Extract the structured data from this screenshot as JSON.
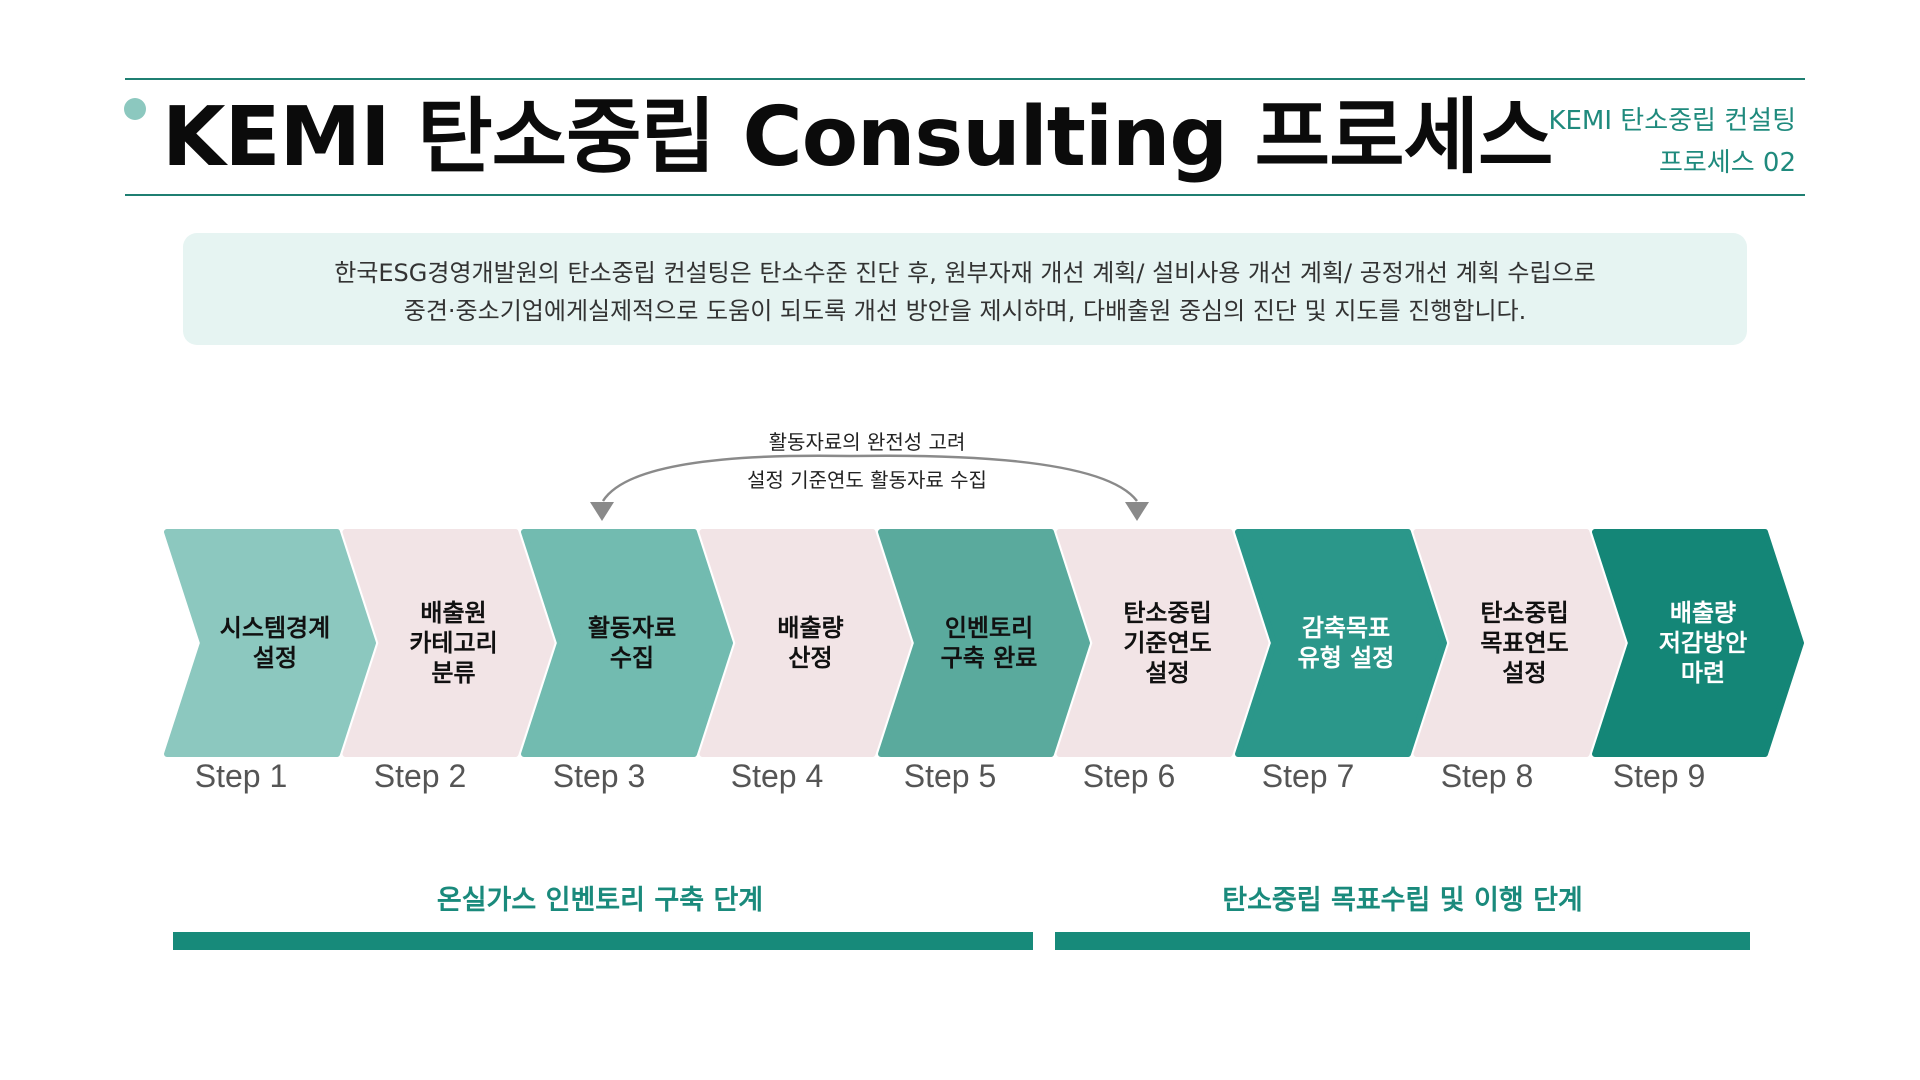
{
  "header": {
    "title": "KEMI 탄소중립 Consulting 프로세스",
    "subtitle_line1": "KEMI 탄소중립 컨설팅",
    "subtitle_line2": "프로세스 02"
  },
  "description": {
    "line1": "한국ESG경영개발원의 탄소중립 컨설팅은 탄소수준 진단 후, 원부자재 개선 계획/ 설비사용 개선 계획/ 공정개선 계획 수립으로",
    "line2": "중견·중소기업에게실제적으로 도움이 되도록 개선 방안을 제시하며, 다배출원 중심의 진단 및 지도를 진행합니다."
  },
  "loop": {
    "label_top": "활동자료의 완전성 고려",
    "label_bottom": "설정 기준연도 활동자료 수집"
  },
  "steps": [
    {
      "lines": [
        "시스템경계",
        "설정"
      ],
      "label": "Step 1",
      "color": "#8cc8bf",
      "text_color": "#111111"
    },
    {
      "lines": [
        "배출원",
        "카테고리",
        "분류"
      ],
      "label": "Step 2",
      "color": "#f2e4e6",
      "text_color": "#111111"
    },
    {
      "lines": [
        "활동자료",
        "수집"
      ],
      "label": "Step 3",
      "color": "#72bbb0",
      "text_color": "#111111"
    },
    {
      "lines": [
        "배출량",
        "산정"
      ],
      "label": "Step 4",
      "color": "#f2e4e6",
      "text_color": "#111111"
    },
    {
      "lines": [
        "인벤토리",
        "구축 완료"
      ],
      "label": "Step 5",
      "color": "#5aaa9d",
      "text_color": "#111111"
    },
    {
      "lines": [
        "탄소중립",
        "기준연도",
        "설정"
      ],
      "label": "Step 6",
      "color": "#f2e4e6",
      "text_color": "#111111"
    },
    {
      "lines": [
        "감축목표",
        "유형 설정"
      ],
      "label": "Step 7",
      "color": "#2b978a",
      "text_color": "#ffffff"
    },
    {
      "lines": [
        "탄소중립",
        "목표연도",
        "설정"
      ],
      "label": "Step 8",
      "color": "#f2e4e6",
      "text_color": "#111111"
    },
    {
      "lines": [
        "배출량",
        "저감방안",
        "마련"
      ],
      "label": "Step 9",
      "color": "#148677",
      "text_color": "#ffffff"
    }
  ],
  "phases": [
    {
      "label": "온실가스 인벤토리 구축 단계"
    },
    {
      "label": "탄소중립 목표수립 및 이행 단계"
    }
  ],
  "colors": {
    "accent": "#1f8a7d",
    "phase_bar": "#178a7a",
    "arrow_gray": "#8a8a8a"
  }
}
